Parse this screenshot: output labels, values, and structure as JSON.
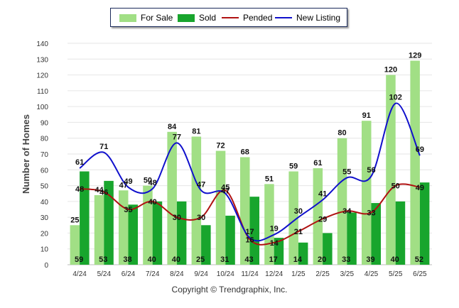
{
  "legend": {
    "for_sale": "For Sale",
    "sold": "Sold",
    "pended": "Pended",
    "new_listing": "New Listing"
  },
  "footer": "Copyright © Trendgraphix, Inc.",
  "colors": {
    "for_sale": "#a1df85",
    "sold": "#18a52d",
    "pended": "#b01212",
    "new_listing": "#1010cc",
    "grid": "#e6e6e6"
  },
  "chart_data": {
    "type": "bar",
    "ylabel": "Number of Homes",
    "ylim": [
      0,
      140
    ],
    "yticks": [
      0,
      10,
      20,
      30,
      40,
      50,
      60,
      70,
      80,
      90,
      100,
      110,
      120,
      130,
      140
    ],
    "grid": true,
    "legend_position": "top-center",
    "categories": [
      "4/24",
      "5/24",
      "6/24",
      "7/24",
      "8/24",
      "9/24",
      "10/24",
      "11/24",
      "12/24",
      "1/25",
      "2/25",
      "3/25",
      "4/25",
      "5/25",
      "6/25"
    ],
    "series": [
      {
        "name": "For Sale",
        "kind": "bar",
        "values": [
          25,
          44,
          47,
          50,
          84,
          81,
          72,
          68,
          51,
          59,
          61,
          80,
          91,
          120,
          129
        ]
      },
      {
        "name": "Sold",
        "kind": "bar",
        "values": [
          59,
          53,
          38,
          40,
          40,
          25,
          31,
          43,
          17,
          14,
          20,
          33,
          39,
          40,
          52
        ]
      },
      {
        "name": "Pended",
        "kind": "line",
        "values": [
          48,
          46,
          35,
          40,
          30,
          30,
          47,
          16,
          14,
          21,
          29,
          34,
          33,
          50,
          49
        ]
      },
      {
        "name": "New Listing",
        "kind": "line",
        "values": [
          61,
          71,
          49,
          48,
          77,
          47,
          45,
          17,
          19,
          30,
          41,
          55,
          56,
          102,
          69
        ]
      }
    ]
  }
}
